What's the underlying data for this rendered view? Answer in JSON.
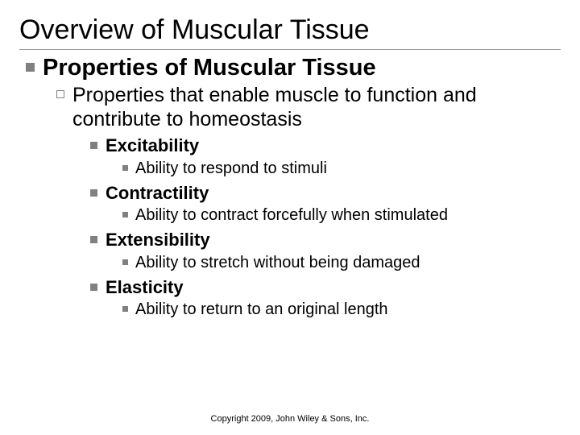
{
  "title": "Overview of Muscular Tissue",
  "level1": {
    "text": "Properties of Muscular Tissue"
  },
  "level2": {
    "text": "Properties that enable muscle to function and contribute to homeostasis"
  },
  "properties": [
    {
      "name": "Excitability",
      "desc": "Ability to respond to stimuli"
    },
    {
      "name": "Contractility",
      "desc": "Ability to contract forcefully when stimulated"
    },
    {
      "name": "Extensibility",
      "desc": "Ability to stretch without being damaged"
    },
    {
      "name": "Elasticity",
      "desc": "Ability to return to an original length"
    }
  ],
  "copyright": "Copyright 2009, John Wiley & Sons, Inc.",
  "colors": {
    "bullet": "#808080",
    "text": "#000000",
    "background": "#ffffff",
    "rule": "#999999"
  },
  "fonts": {
    "title_size": 34,
    "l1_size": 29,
    "l2_size": 25,
    "l3_size": 22,
    "l4_size": 20,
    "copyright_size": 11
  }
}
